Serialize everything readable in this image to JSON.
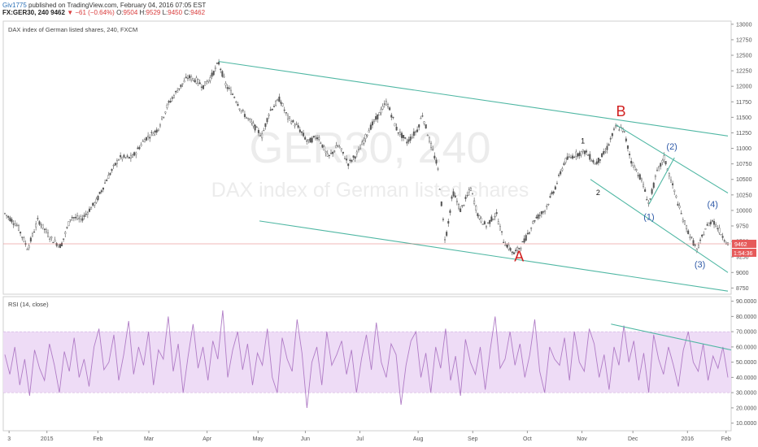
{
  "header": {
    "author": "Giv1775",
    "published": "published on TradingView.com, February 04, 2016 07:05 EST",
    "symbol": "FX:GER30, 240",
    "last": "9462",
    "change_arrow": "▼",
    "change": "−61 (−0.64%)",
    "o_label": "O:",
    "o_value": "9504",
    "h_label": "H:",
    "h_value": "9529",
    "l_label": "L:",
    "l_value": "9450",
    "c_label": "C:",
    "c_value": "9462"
  },
  "chart_data": [
    {
      "type": "candlestick",
      "title": "DAX index of German listed shares, 240, FXCM",
      "watermark_line1": "GER30, 240",
      "watermark_line2": "DAX index of German listed shares",
      "x_tick_labels": [
        "3",
        "2015",
        "Feb",
        "Mar",
        "Apr",
        "May",
        "Jun",
        "Jul",
        "Aug",
        "Sep",
        "Oct",
        "Nov",
        "Dec",
        "2016",
        "Feb"
      ],
      "y_tick_labels": [
        "13000",
        "12750",
        "12500",
        "12250",
        "12000",
        "11750",
        "11500",
        "11250",
        "11000",
        "10750",
        "10500",
        "10250",
        "10000",
        "9750",
        "9500",
        "9250",
        "9000",
        "8750"
      ],
      "ylim": [
        8650,
        13050
      ],
      "last_price_label": "9462",
      "countdown_label": "1:54:36",
      "colors": {
        "up": "#555555",
        "down": "#555555",
        "trendline": "#4fb7a3",
        "last_price": "#e57373",
        "wave_red": "#d11f1f",
        "wave_blue": "#2f5aa8"
      },
      "price_path": [
        {
          "x": 0.0,
          "y": 9950
        },
        {
          "x": 0.5,
          "y": 9750
        },
        {
          "x": 0.9,
          "y": 9380
        },
        {
          "x": 1.3,
          "y": 9850
        },
        {
          "x": 1.8,
          "y": 9550
        },
        {
          "x": 2.2,
          "y": 9420
        },
        {
          "x": 2.6,
          "y": 9900
        },
        {
          "x": 3.0,
          "y": 9850
        },
        {
          "x": 3.6,
          "y": 10150
        },
        {
          "x": 4.0,
          "y": 10500
        },
        {
          "x": 4.5,
          "y": 10850
        },
        {
          "x": 5.0,
          "y": 10850
        },
        {
          "x": 5.5,
          "y": 11150
        },
        {
          "x": 6.0,
          "y": 11300
        },
        {
          "x": 6.4,
          "y": 11700
        },
        {
          "x": 6.8,
          "y": 11950
        },
        {
          "x": 7.2,
          "y": 12150
        },
        {
          "x": 7.5,
          "y": 12100
        },
        {
          "x": 7.8,
          "y": 12000
        },
        {
          "x": 8.1,
          "y": 12150
        },
        {
          "x": 8.4,
          "y": 12380
        },
        {
          "x": 8.7,
          "y": 12000
        },
        {
          "x": 9.0,
          "y": 11850
        },
        {
          "x": 9.3,
          "y": 11600
        },
        {
          "x": 9.7,
          "y": 11400
        },
        {
          "x": 10.1,
          "y": 11200
        },
        {
          "x": 10.4,
          "y": 11600
        },
        {
          "x": 10.8,
          "y": 11800
        },
        {
          "x": 11.1,
          "y": 11500
        },
        {
          "x": 11.5,
          "y": 11350
        },
        {
          "x": 11.9,
          "y": 11100
        },
        {
          "x": 12.3,
          "y": 11200
        },
        {
          "x": 12.7,
          "y": 10850
        },
        {
          "x": 13.1,
          "y": 11050
        },
        {
          "x": 13.5,
          "y": 10750
        },
        {
          "x": 13.9,
          "y": 10950
        },
        {
          "x": 14.3,
          "y": 11300
        },
        {
          "x": 14.7,
          "y": 11550
        },
        {
          "x": 15.0,
          "y": 11750
        },
        {
          "x": 15.4,
          "y": 11300
        },
        {
          "x": 15.8,
          "y": 11100
        },
        {
          "x": 16.2,
          "y": 11300
        },
        {
          "x": 16.4,
          "y": 11550
        },
        {
          "x": 16.7,
          "y": 11100
        },
        {
          "x": 17.0,
          "y": 10700
        },
        {
          "x": 17.3,
          "y": 9500
        },
        {
          "x": 17.6,
          "y": 10300
        },
        {
          "x": 17.9,
          "y": 10000
        },
        {
          "x": 18.3,
          "y": 10350
        },
        {
          "x": 18.6,
          "y": 9900
        },
        {
          "x": 18.9,
          "y": 9750
        },
        {
          "x": 19.3,
          "y": 9950
        },
        {
          "x": 19.6,
          "y": 9500
        },
        {
          "x": 20.0,
          "y": 9300
        },
        {
          "x": 20.4,
          "y": 9500
        },
        {
          "x": 20.8,
          "y": 9850
        },
        {
          "x": 21.2,
          "y": 10000
        },
        {
          "x": 21.6,
          "y": 10350
        },
        {
          "x": 22.0,
          "y": 10800
        },
        {
          "x": 22.4,
          "y": 10900
        },
        {
          "x": 22.8,
          "y": 10950
        },
        {
          "x": 23.2,
          "y": 10750
        },
        {
          "x": 23.6,
          "y": 10950
        },
        {
          "x": 24.0,
          "y": 11350
        },
        {
          "x": 24.3,
          "y": 11300
        },
        {
          "x": 24.6,
          "y": 10800
        },
        {
          "x": 25.0,
          "y": 10500
        },
        {
          "x": 25.3,
          "y": 10100
        },
        {
          "x": 25.6,
          "y": 10600
        },
        {
          "x": 25.9,
          "y": 10850
        },
        {
          "x": 26.3,
          "y": 10300
        },
        {
          "x": 26.6,
          "y": 9900
        },
        {
          "x": 26.9,
          "y": 9600
        },
        {
          "x": 27.2,
          "y": 9350
        },
        {
          "x": 27.5,
          "y": 9700
        },
        {
          "x": 27.8,
          "y": 9850
        },
        {
          "x": 28.1,
          "y": 9650
        },
        {
          "x": 28.4,
          "y": 9462
        }
      ],
      "trendlines": [
        {
          "x1": 8.4,
          "y1": 12400,
          "x2": 28.4,
          "y2": 11200
        },
        {
          "x1": 10.0,
          "y1": 9830,
          "x2": 28.4,
          "y2": 8700
        },
        {
          "x1": 24.0,
          "y1": 11380,
          "x2": 28.4,
          "y2": 10280
        },
        {
          "x1": 23.0,
          "y1": 10500,
          "x2": 28.4,
          "y2": 9000
        },
        {
          "x1": 25.3,
          "y1": 10100,
          "x2": 26.3,
          "y2": 10850
        }
      ],
      "wave_labels": [
        {
          "text": "A",
          "x": 20.2,
          "y": 9180,
          "color_key": "wave_red",
          "size": "large"
        },
        {
          "text": "B",
          "x": 24.2,
          "y": 11520,
          "color_key": "wave_red",
          "size": "large"
        },
        {
          "text": "1",
          "x": 22.7,
          "y": 11080,
          "color_key": "black",
          "size": "small"
        },
        {
          "text": "2",
          "x": 23.3,
          "y": 10250,
          "color_key": "black",
          "size": "small"
        },
        {
          "text": "(1)",
          "x": 25.3,
          "y": 9850,
          "color_key": "wave_blue",
          "size": "medium"
        },
        {
          "text": "(2)",
          "x": 26.2,
          "y": 10980,
          "color_key": "wave_blue",
          "size": "medium"
        },
        {
          "text": "(3)",
          "x": 27.3,
          "y": 9080,
          "color_key": "wave_blue",
          "size": "medium"
        },
        {
          "text": "(4)",
          "x": 27.8,
          "y": 10050,
          "color_key": "wave_blue",
          "size": "medium"
        }
      ]
    },
    {
      "type": "line",
      "title": "RSI (14, close)",
      "y_tick_labels": [
        "90.0000",
        "80.0000",
        "70.0000",
        "60.0000",
        "50.0000",
        "40.0000",
        "30.0000",
        "20.0000",
        "10.0000"
      ],
      "ylim": [
        5,
        93
      ],
      "band": [
        30,
        70
      ],
      "colors": {
        "line": "#b07cc6",
        "band": "#eedcf6",
        "trendline": "#4fb7a3"
      },
      "series": [
        {
          "values": [
            55,
            42,
            60,
            35,
            52,
            28,
            58,
            46,
            38,
            62,
            48,
            30,
            57,
            44,
            66,
            40,
            52,
            34,
            60,
            72,
            45,
            50,
            68,
            38,
            55,
            77,
            42,
            60,
            48,
            70,
            35,
            58,
            52,
            80,
            44,
            62,
            30,
            54,
            75,
            46,
            60,
            38,
            64,
            52,
            84,
            40,
            58,
            70,
            45,
            62,
            35,
            56,
            48,
            72,
            40,
            30,
            66,
            52,
            44,
            78,
            56,
            20,
            50,
            60,
            35,
            70,
            48,
            55,
            64,
            42,
            58,
            30,
            52,
            68,
            45,
            76,
            50,
            40,
            62,
            55,
            22,
            48,
            64,
            70,
            40,
            56,
            30,
            60,
            46,
            72,
            38,
            54,
            28,
            65,
            50,
            42,
            60,
            32,
            58,
            80,
            46,
            52,
            70,
            48,
            62,
            40,
            55,
            78,
            44,
            30,
            60,
            52,
            48,
            66,
            38,
            70,
            50,
            44,
            72,
            62,
            40,
            55,
            32,
            60,
            48,
            74,
            50,
            64,
            38,
            56,
            30,
            68,
            52,
            42,
            60,
            48,
            34,
            58,
            70,
            50,
            44,
            62,
            38,
            54,
            46,
            60,
            40
          ]
        }
      ],
      "trendline": {
        "x1": 0.835,
        "y1": 75,
        "x2": 1.0,
        "y2": 58
      }
    }
  ]
}
